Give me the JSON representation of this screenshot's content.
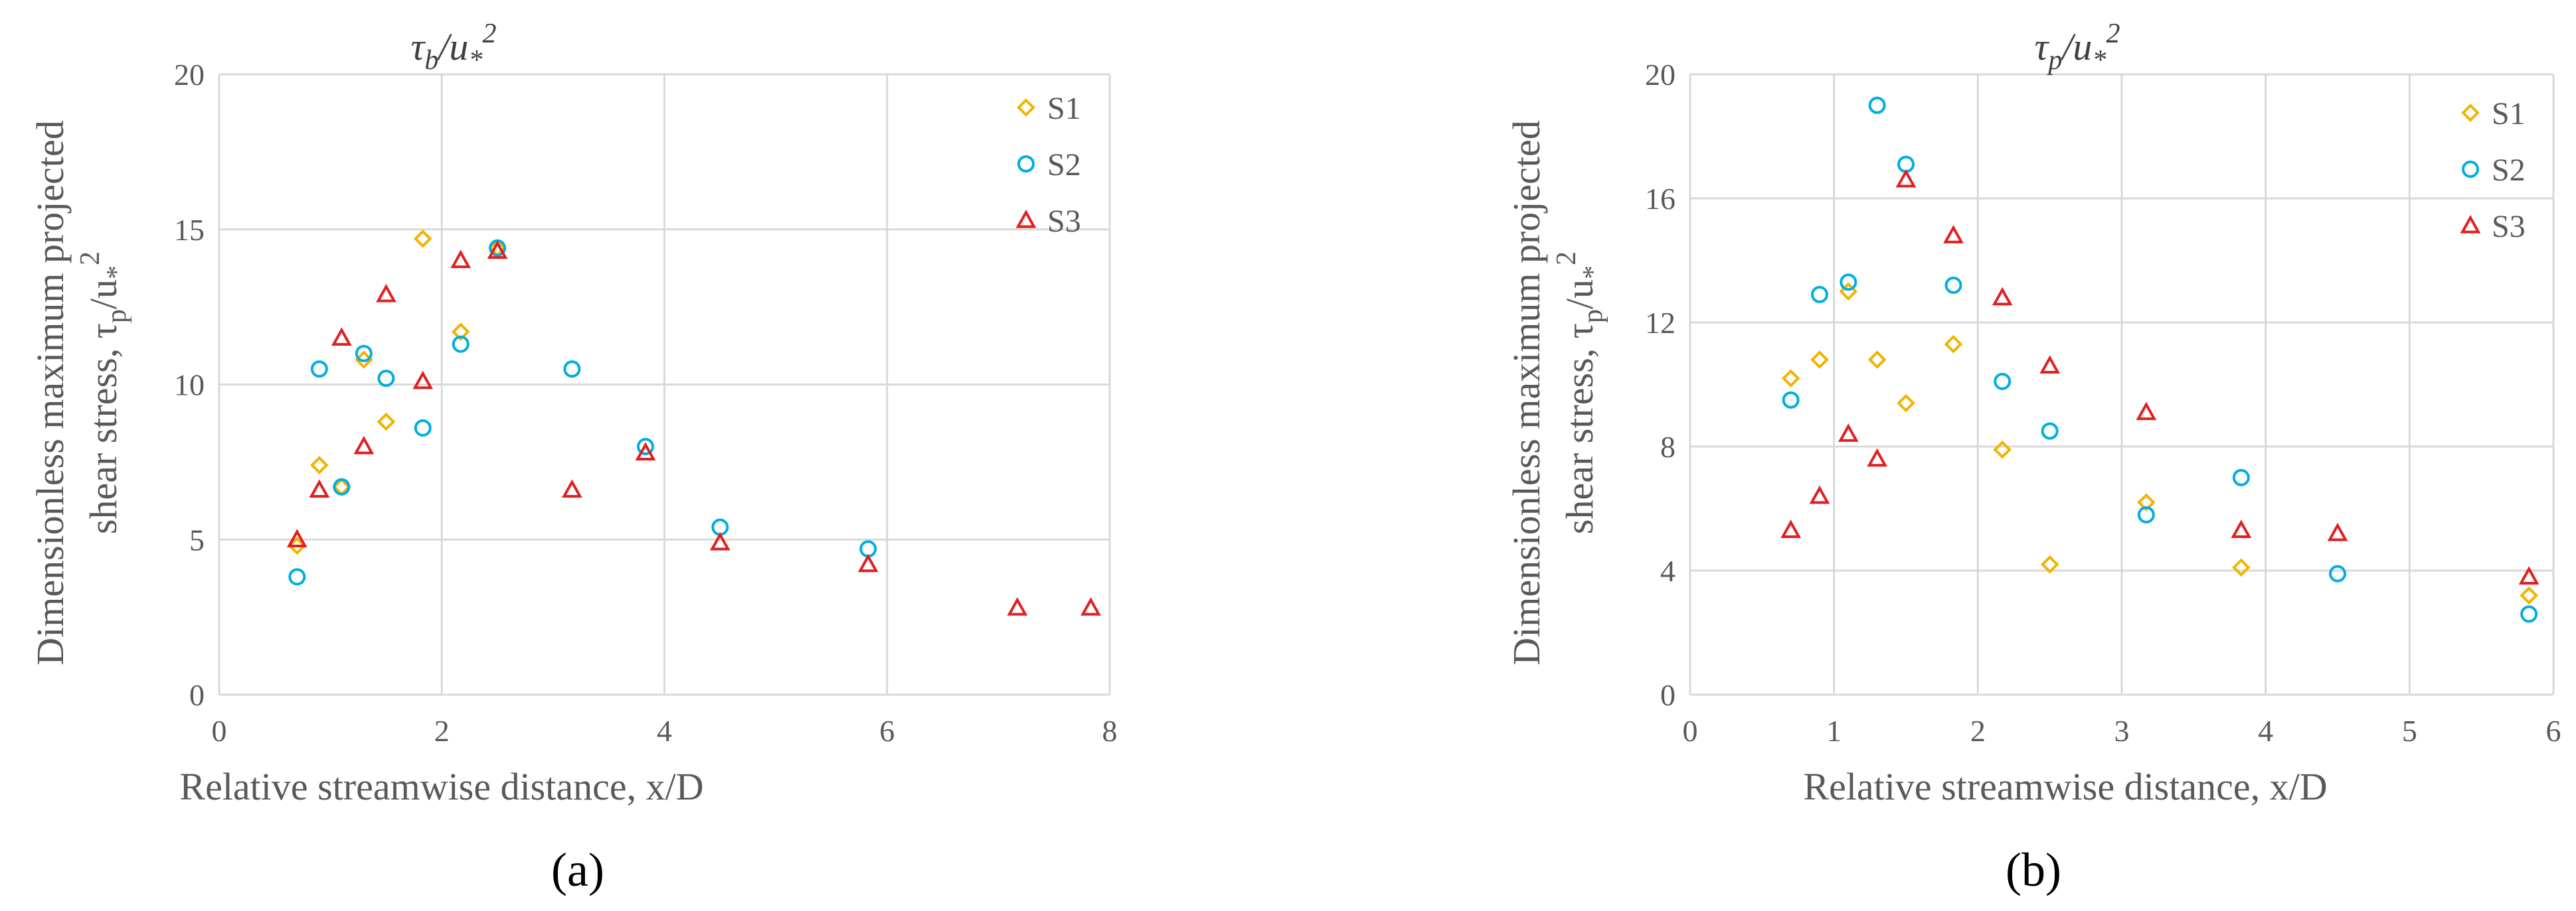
{
  "figure": {
    "panel_labels": [
      "(a)",
      "(b)"
    ]
  },
  "colors": {
    "S1": "#f2b300",
    "S2": "#00aee0",
    "S3": "#e02020",
    "grid": "#d9d9d9",
    "text": "#595959"
  },
  "chart_data": [
    {
      "type": "scatter",
      "title": "τb/u*2",
      "title_parts": {
        "base": "τ",
        "sub": "b",
        "mid": "/u",
        "sub2": "*",
        "sup": "2"
      },
      "xlabel": "Relative streamwise distance, x/D",
      "ylabel_line1": "Dimensionless maximum projected",
      "ylabel_line2": "shear stress, τp/u*2",
      "ylabel_line2_parts": {
        "base": "shear stress, τ",
        "sub": "p",
        "mid": "/u",
        "sub2": "*",
        "sup": "2"
      },
      "xlim": [
        0,
        8
      ],
      "ylim": [
        0,
        20
      ],
      "xticks": [
        0,
        2,
        4,
        6,
        8
      ],
      "yticks": [
        0,
        5,
        10,
        15,
        20
      ],
      "grid": true,
      "legend_position": "top-right",
      "series": [
        {
          "name": "S1",
          "marker": "diamond",
          "points": [
            [
              0.7,
              4.8
            ],
            [
              0.9,
              7.4
            ],
            [
              1.1,
              6.7
            ],
            [
              1.3,
              10.8
            ],
            [
              1.5,
              8.8
            ],
            [
              1.83,
              14.7
            ],
            [
              2.17,
              11.7
            ],
            [
              2.5,
              14.4
            ]
          ]
        },
        {
          "name": "S2",
          "marker": "circle",
          "points": [
            [
              0.7,
              3.8
            ],
            [
              0.9,
              10.5
            ],
            [
              1.1,
              6.7
            ],
            [
              1.3,
              11.0
            ],
            [
              1.5,
              10.2
            ],
            [
              1.83,
              8.6
            ],
            [
              2.17,
              11.3
            ],
            [
              2.5,
              14.4
            ],
            [
              3.17,
              10.5
            ],
            [
              3.83,
              8.0
            ],
            [
              4.5,
              5.4
            ],
            [
              5.83,
              4.7
            ]
          ]
        },
        {
          "name": "S3",
          "marker": "triangle",
          "points": [
            [
              0.7,
              5.0
            ],
            [
              0.9,
              6.6
            ],
            [
              1.1,
              11.5
            ],
            [
              1.3,
              8.0
            ],
            [
              1.5,
              12.9
            ],
            [
              1.83,
              10.1
            ],
            [
              2.17,
              14.0
            ],
            [
              2.5,
              14.3
            ],
            [
              3.17,
              6.6
            ],
            [
              3.83,
              7.8
            ],
            [
              4.5,
              4.9
            ],
            [
              5.83,
              4.2
            ],
            [
              7.17,
              2.8
            ],
            [
              7.83,
              2.8
            ]
          ]
        }
      ]
    },
    {
      "type": "scatter",
      "title": "τp/u*2",
      "title_parts": {
        "base": "τ",
        "sub": "p",
        "mid": "/u",
        "sub2": "*",
        "sup": "2"
      },
      "xlabel": "Relative streamwise distance, x/D",
      "ylabel_line1": "Dimensionless maximum projected",
      "ylabel_line2": "shear stress, τp/u*2",
      "ylabel_line2_parts": {
        "base": "shear stress, τ",
        "sub": "p",
        "mid": "/u",
        "sub2": "*",
        "sup": "2"
      },
      "xlim": [
        0,
        6
      ],
      "ylim": [
        0,
        20
      ],
      "xticks": [
        0,
        1,
        2,
        3,
        4,
        5,
        6
      ],
      "yticks": [
        0,
        4,
        8,
        12,
        16,
        20
      ],
      "grid": true,
      "legend_position": "top-right",
      "series": [
        {
          "name": "S1",
          "marker": "diamond",
          "points": [
            [
              0.7,
              10.2
            ],
            [
              0.9,
              10.8
            ],
            [
              1.1,
              13.0
            ],
            [
              1.3,
              10.8
            ],
            [
              1.5,
              9.4
            ],
            [
              1.83,
              11.3
            ],
            [
              2.17,
              7.9
            ],
            [
              2.5,
              4.2
            ],
            [
              3.17,
              6.2
            ],
            [
              3.83,
              4.1
            ],
            [
              5.83,
              3.2
            ]
          ]
        },
        {
          "name": "S2",
          "marker": "circle",
          "points": [
            [
              0.7,
              9.5
            ],
            [
              0.9,
              12.9
            ],
            [
              1.1,
              13.3
            ],
            [
              1.3,
              19.0
            ],
            [
              1.5,
              17.1
            ],
            [
              1.83,
              13.2
            ],
            [
              2.17,
              10.1
            ],
            [
              2.5,
              8.5
            ],
            [
              3.17,
              5.8
            ],
            [
              3.83,
              7.0
            ],
            [
              4.5,
              3.9
            ],
            [
              5.83,
              2.6
            ]
          ]
        },
        {
          "name": "S3",
          "marker": "triangle",
          "points": [
            [
              0.7,
              5.3
            ],
            [
              0.9,
              6.4
            ],
            [
              1.1,
              8.4
            ],
            [
              1.3,
              7.6
            ],
            [
              1.5,
              16.6
            ],
            [
              1.83,
              14.8
            ],
            [
              2.17,
              12.8
            ],
            [
              2.5,
              10.6
            ],
            [
              3.17,
              9.1
            ],
            [
              3.83,
              5.3
            ],
            [
              4.5,
              5.2
            ],
            [
              5.83,
              3.8
            ]
          ]
        }
      ]
    }
  ]
}
